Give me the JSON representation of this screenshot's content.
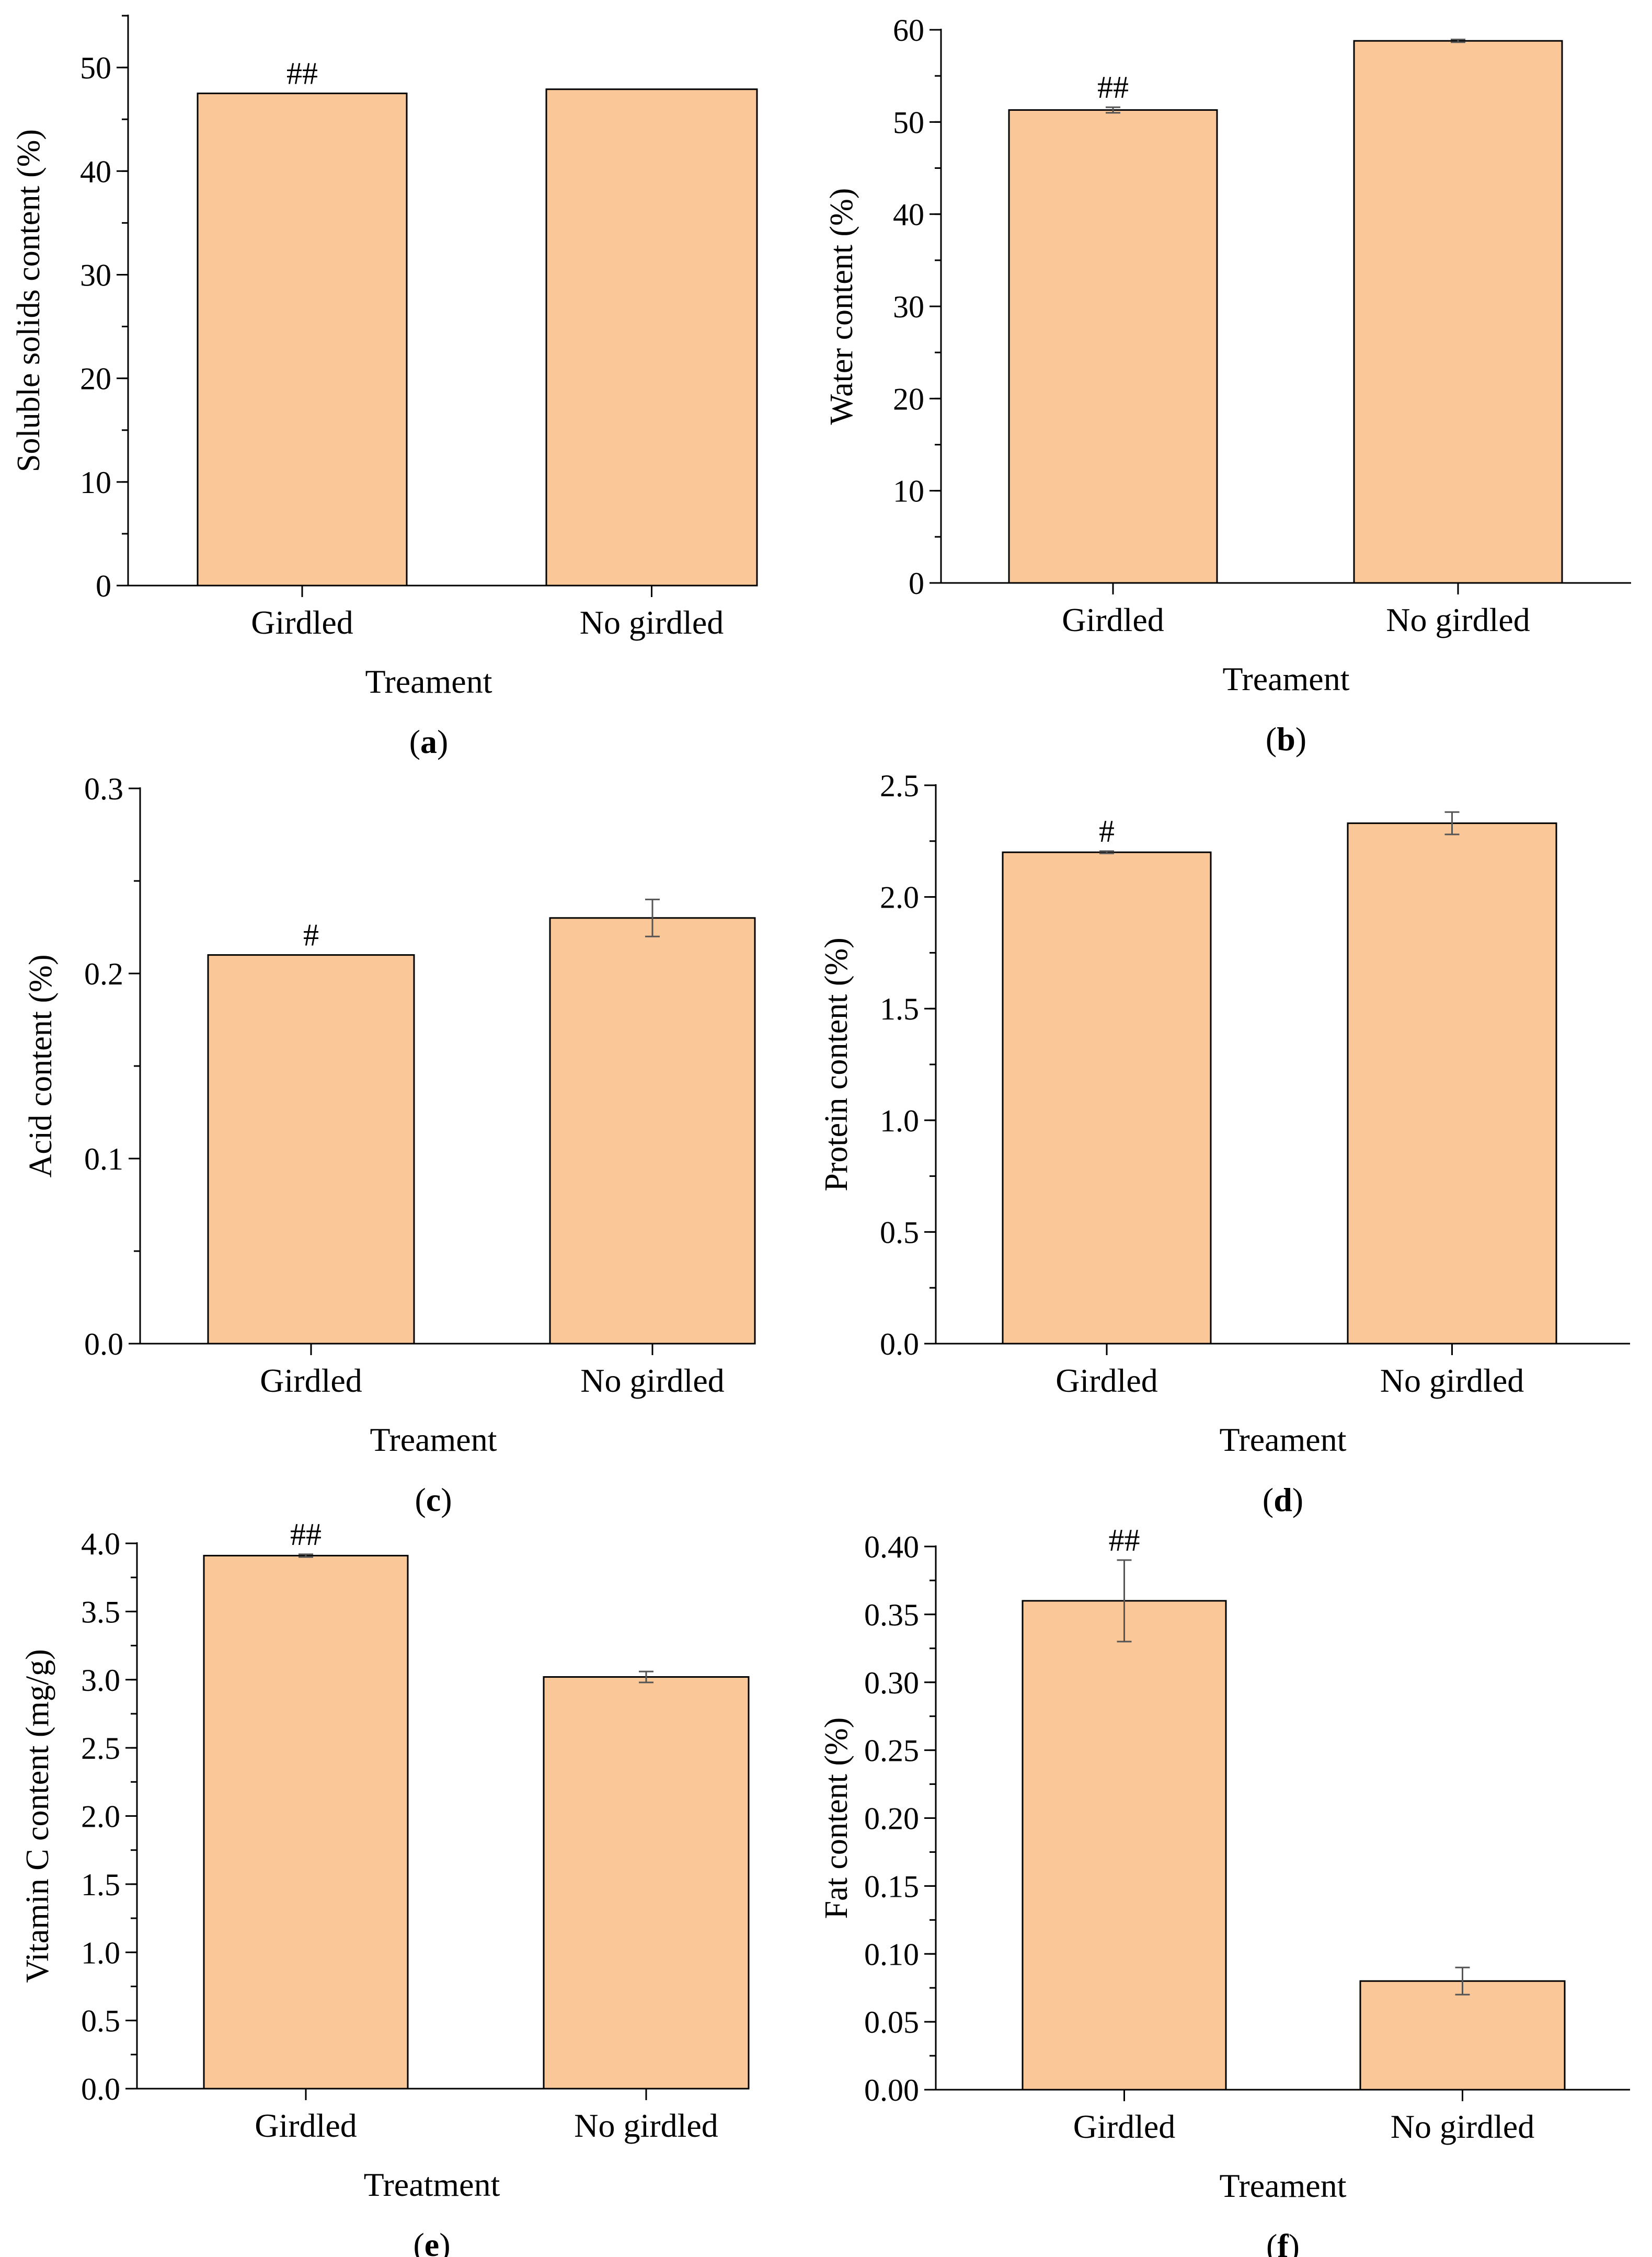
{
  "figure": {
    "bar_color": "#F9C798",
    "bar_stroke": "#000000",
    "error_color": "#555555"
  },
  "chart_data": [
    {
      "type": "bar",
      "panel": "(a)",
      "panel_letter": "a",
      "categories": [
        "Girdled",
        "No girdled"
      ],
      "values": [
        47.5,
        47.9
      ],
      "errors": [
        0.0,
        0.0
      ],
      "annotations": [
        "##",
        ""
      ],
      "xlabel": "Treament",
      "ylabel": "Soluble solids content (%)",
      "ylim": [
        0,
        55
      ],
      "yticks": [
        0,
        10,
        20,
        30,
        40,
        50
      ],
      "ytick_labels": [
        "0",
        "10",
        "20",
        "30",
        "40",
        "50"
      ],
      "minor_step": 5,
      "grid": false
    },
    {
      "type": "bar",
      "panel": "(b)",
      "panel_letter": "b",
      "categories": [
        "Girdled",
        "No girdled"
      ],
      "values": [
        51.3,
        58.8
      ],
      "errors": [
        0.3,
        0.15
      ],
      "annotations": [
        "##",
        ""
      ],
      "xlabel": "Treament",
      "ylabel": "Water content (%)",
      "ylim": [
        0,
        60
      ],
      "yticks": [
        0,
        10,
        20,
        30,
        40,
        50,
        60
      ],
      "ytick_labels": [
        "0",
        "10",
        "20",
        "30",
        "40",
        "50",
        "60"
      ],
      "minor_step": 5,
      "grid": false
    },
    {
      "type": "bar",
      "panel": "(c)",
      "panel_letter": "c",
      "categories": [
        "Girdled",
        "No girdled"
      ],
      "values": [
        0.21,
        0.23
      ],
      "errors": [
        0.0,
        0.01
      ],
      "annotations": [
        "#",
        ""
      ],
      "xlabel": "Treament",
      "ylabel": "Acid content (%)",
      "ylim": [
        0,
        0.3
      ],
      "yticks": [
        0,
        0.1,
        0.2,
        0.3
      ],
      "ytick_labels": [
        "0.0",
        "0.1",
        "0.2",
        "0.3"
      ],
      "minor_step": 0.05,
      "grid": false
    },
    {
      "type": "bar",
      "panel": "(d)",
      "panel_letter": "d",
      "categories": [
        "Girdled",
        "No girdled"
      ],
      "values": [
        2.2,
        2.33
      ],
      "errors": [
        0.005,
        0.05
      ],
      "annotations": [
        "#",
        ""
      ],
      "xlabel": "Treament",
      "ylabel": "Protein content (%)",
      "ylim": [
        0,
        2.5
      ],
      "yticks": [
        0,
        0.5,
        1.0,
        1.5,
        2.0,
        2.5
      ],
      "ytick_labels": [
        "0.0",
        "0.5",
        "1.0",
        "1.5",
        "2.0",
        "2.5"
      ],
      "minor_step": 0.25,
      "grid": false
    },
    {
      "type": "bar",
      "panel": "(e)",
      "panel_letter": "e",
      "categories": [
        "Girdled",
        "No girdled"
      ],
      "values": [
        3.91,
        3.02
      ],
      "errors": [
        0.01,
        0.04
      ],
      "annotations": [
        "##",
        ""
      ],
      "xlabel": "Treatment",
      "ylabel": "Vitamin C content (mg/g)",
      "ylim": [
        0,
        4.0
      ],
      "yticks": [
        0,
        0.5,
        1.0,
        1.5,
        2.0,
        2.5,
        3.0,
        3.5,
        4.0
      ],
      "ytick_labels": [
        "0.0",
        "0.5",
        "1.0",
        "1.5",
        "2.0",
        "2.5",
        "3.0",
        "3.5",
        "4.0"
      ],
      "minor_step": 0.25,
      "grid": false
    },
    {
      "type": "bar",
      "panel": "(f)",
      "panel_letter": "f",
      "categories": [
        "Girdled",
        "No girdled"
      ],
      "values": [
        0.36,
        0.08
      ],
      "errors": [
        0.03,
        0.01
      ],
      "annotations": [
        "##",
        ""
      ],
      "xlabel": "Treament",
      "ylabel": "Fat content (%)",
      "ylim": [
        0,
        0.4
      ],
      "yticks": [
        0,
        0.05,
        0.1,
        0.15,
        0.2,
        0.25,
        0.3,
        0.35,
        0.4
      ],
      "ytick_labels": [
        "0.00",
        "0.05",
        "0.10",
        "0.15",
        "0.20",
        "0.25",
        "0.30",
        "0.35",
        "0.40"
      ],
      "minor_step": 0.025,
      "grid": false
    }
  ]
}
